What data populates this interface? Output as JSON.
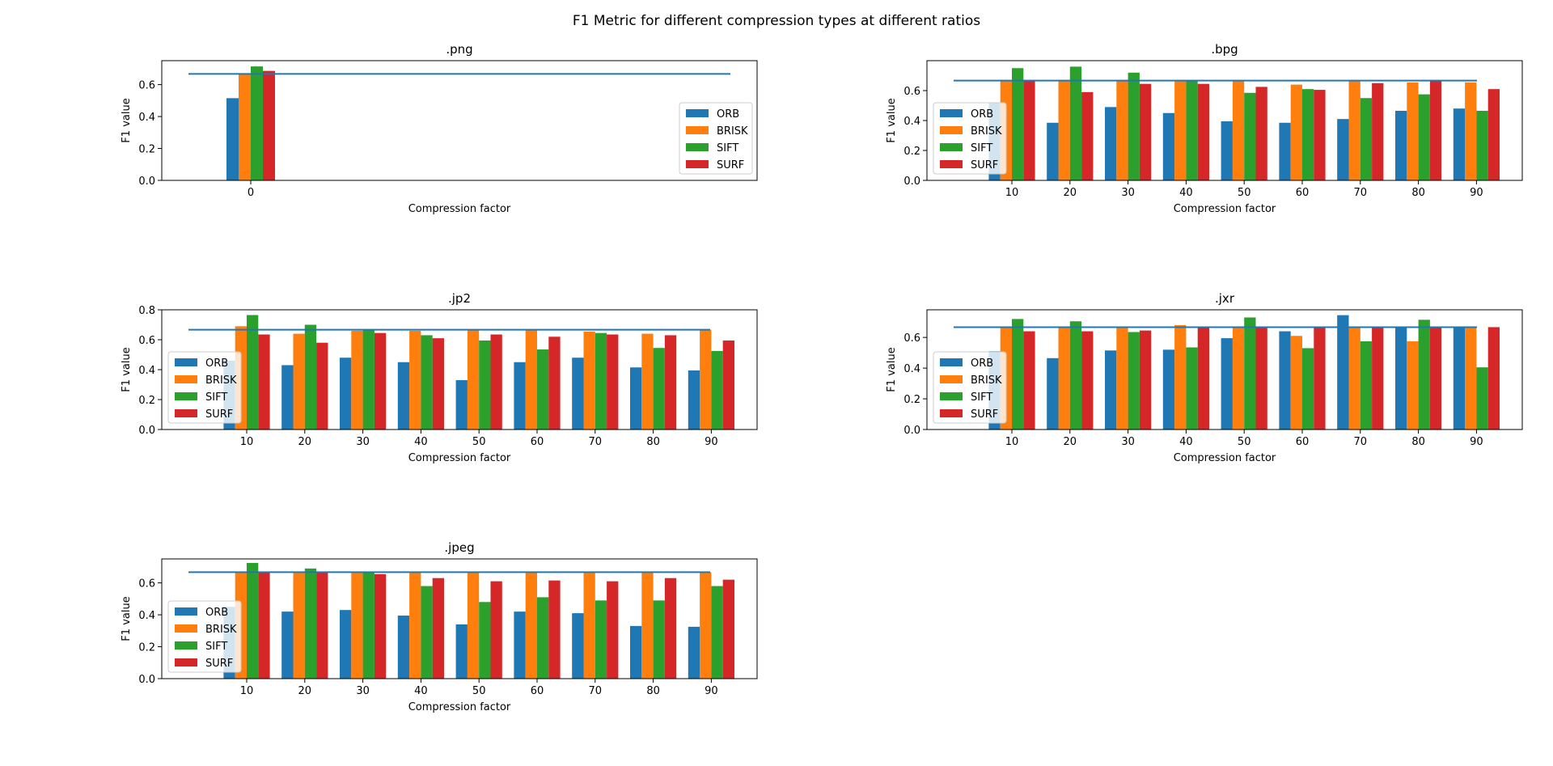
{
  "figure": {
    "title": "F1 Metric for different compression types at different ratios"
  },
  "colors": {
    "ORB": "#1f77b4",
    "BRISK": "#ff7f0e",
    "SIFT": "#2ca02c",
    "SURF": "#d62728",
    "reference_line": "#1f77b4"
  },
  "chart_data": [
    {
      "type": "bar",
      "title": ".png",
      "xlabel": "Compression factor",
      "ylabel": "F1 value",
      "categories": [
        "0"
      ],
      "ylim": [
        0,
        0.75
      ],
      "yticks": [
        "0.0",
        "0.2",
        "0.4",
        "0.6"
      ],
      "reference_line": 0.667,
      "legend_position": "lower right",
      "series": [
        {
          "name": "ORB",
          "values": [
            0.515
          ]
        },
        {
          "name": "BRISK",
          "values": [
            0.667
          ]
        },
        {
          "name": "SIFT",
          "values": [
            0.714
          ]
        },
        {
          "name": "SURF",
          "values": [
            0.686
          ]
        }
      ]
    },
    {
      "type": "bar",
      "title": ".bpg",
      "xlabel": "Compression factor",
      "ylabel": "F1 value",
      "categories": [
        "10",
        "20",
        "30",
        "40",
        "50",
        "60",
        "70",
        "80",
        "90"
      ],
      "ylim": [
        0,
        0.8
      ],
      "yticks": [
        "0.0",
        "0.2",
        "0.4",
        "0.6"
      ],
      "reference_line": 0.667,
      "legend_position": "lower left",
      "series": [
        {
          "name": "ORB",
          "values": [
            0.52,
            0.385,
            0.49,
            0.45,
            0.395,
            0.385,
            0.41,
            0.465,
            0.48
          ]
        },
        {
          "name": "BRISK",
          "values": [
            0.667,
            0.667,
            0.667,
            0.667,
            0.667,
            0.64,
            0.667,
            0.655,
            0.655
          ]
        },
        {
          "name": "SIFT",
          "values": [
            0.75,
            0.76,
            0.72,
            0.667,
            0.585,
            0.61,
            0.55,
            0.575,
            0.465
          ]
        },
        {
          "name": "SURF",
          "values": [
            0.667,
            0.59,
            0.645,
            0.645,
            0.625,
            0.605,
            0.65,
            0.667,
            0.61
          ]
        }
      ]
    },
    {
      "type": "bar",
      "title": ".jp2",
      "xlabel": "Compression factor",
      "ylabel": "F1 value",
      "categories": [
        "10",
        "20",
        "30",
        "40",
        "50",
        "60",
        "70",
        "80",
        "90"
      ],
      "ylim": [
        0,
        0.8
      ],
      "yticks": [
        "0.0",
        "0.2",
        "0.4",
        "0.6",
        "0.8"
      ],
      "reference_line": 0.667,
      "legend_position": "lower left",
      "series": [
        {
          "name": "ORB",
          "values": [
            0.46,
            0.43,
            0.48,
            0.45,
            0.33,
            0.45,
            0.48,
            0.415,
            0.395
          ]
        },
        {
          "name": "BRISK",
          "values": [
            0.69,
            0.64,
            0.66,
            0.66,
            0.667,
            0.667,
            0.655,
            0.64,
            0.667
          ]
        },
        {
          "name": "SIFT",
          "values": [
            0.765,
            0.7,
            0.667,
            0.63,
            0.595,
            0.535,
            0.645,
            0.545,
            0.525
          ]
        },
        {
          "name": "SURF",
          "values": [
            0.635,
            0.58,
            0.645,
            0.61,
            0.635,
            0.62,
            0.635,
            0.63,
            0.595
          ]
        }
      ]
    },
    {
      "type": "bar",
      "title": ".jxr",
      "xlabel": "Compression factor",
      "ylabel": "F1 value",
      "categories": [
        "10",
        "20",
        "30",
        "40",
        "50",
        "60",
        "70",
        "80",
        "90"
      ],
      "ylim": [
        0,
        0.78
      ],
      "yticks": [
        "0.0",
        "0.2",
        "0.4",
        "0.6"
      ],
      "reference_line": 0.667,
      "legend_position": "lower left",
      "series": [
        {
          "name": "ORB",
          "values": [
            0.51,
            0.465,
            0.515,
            0.52,
            0.595,
            0.64,
            0.745,
            0.667,
            0.667
          ]
        },
        {
          "name": "BRISK",
          "values": [
            0.667,
            0.667,
            0.667,
            0.68,
            0.667,
            0.61,
            0.667,
            0.575,
            0.667
          ]
        },
        {
          "name": "SIFT",
          "values": [
            0.72,
            0.705,
            0.635,
            0.535,
            0.73,
            0.53,
            0.575,
            0.715,
            0.405
          ]
        },
        {
          "name": "SURF",
          "values": [
            0.64,
            0.64,
            0.645,
            0.667,
            0.667,
            0.667,
            0.667,
            0.667,
            0.667
          ]
        }
      ]
    },
    {
      "type": "bar",
      "title": ".jpeg",
      "xlabel": "Compression factor",
      "ylabel": "F1 value",
      "categories": [
        "10",
        "20",
        "30",
        "40",
        "50",
        "60",
        "70",
        "80",
        "90"
      ],
      "ylim": [
        0,
        0.75
      ],
      "yticks": [
        "0.0",
        "0.2",
        "0.4",
        "0.6"
      ],
      "reference_line": 0.667,
      "legend_position": "lower left",
      "series": [
        {
          "name": "ORB",
          "values": [
            0.45,
            0.42,
            0.43,
            0.395,
            0.34,
            0.42,
            0.41,
            0.33,
            0.325
          ]
        },
        {
          "name": "BRISK",
          "values": [
            0.667,
            0.667,
            0.667,
            0.667,
            0.667,
            0.667,
            0.667,
            0.667,
            0.667
          ]
        },
        {
          "name": "SIFT",
          "values": [
            0.725,
            0.69,
            0.667,
            0.58,
            0.48,
            0.51,
            0.49,
            0.49,
            0.58
          ]
        },
        {
          "name": "SURF",
          "values": [
            0.667,
            0.667,
            0.655,
            0.63,
            0.61,
            0.615,
            0.61,
            0.63,
            0.62
          ]
        }
      ]
    }
  ]
}
